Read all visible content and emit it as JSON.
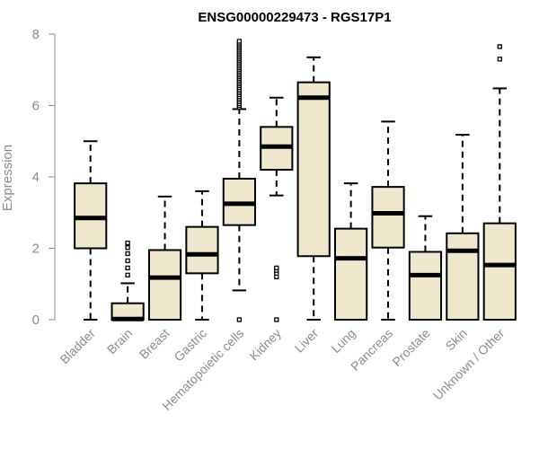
{
  "chart_data": {
    "type": "boxplot",
    "title": "ENSG00000229473 - RGS17P1",
    "xlabel": "",
    "ylabel": "Expression",
    "ylim": [
      0,
      8
    ],
    "yticks": [
      0,
      2,
      4,
      6,
      8
    ],
    "grid": false,
    "legend": "none",
    "colors": {
      "box_fill": "#efe8cf",
      "stroke": "#000000",
      "axis_text": "#8c8c8c"
    },
    "categories": [
      "Bladder",
      "Brain",
      "Breast",
      "Gastric",
      "Hematopoietic cells",
      "Kidney",
      "Liver",
      "Lung",
      "Pancreas",
      "Prostate",
      "Skin",
      "Unknown / Other"
    ],
    "boxes": [
      {
        "category": "Bladder",
        "whisker_low": 0.0,
        "q1": 2.0,
        "median": 2.85,
        "q3": 3.82,
        "whisker_high": 5.0,
        "outliers": []
      },
      {
        "category": "Brain",
        "whisker_low": 0.0,
        "q1": 0.0,
        "median": 0.02,
        "q3": 0.46,
        "whisker_high": 1.02,
        "outliers": [
          1.25,
          1.45,
          1.65,
          1.85,
          2.02,
          2.15
        ]
      },
      {
        "category": "Breast",
        "whisker_low": 0.0,
        "q1": 0.0,
        "median": 1.18,
        "q3": 1.95,
        "whisker_high": 3.45,
        "outliers": []
      },
      {
        "category": "Gastric",
        "whisker_low": 0.0,
        "q1": 1.3,
        "median": 1.83,
        "q3": 2.6,
        "whisker_high": 3.6,
        "outliers": []
      },
      {
        "category": "Hematopoietic cells",
        "whisker_low": 0.82,
        "q1": 2.65,
        "median": 3.25,
        "q3": 3.95,
        "whisker_high": 5.9,
        "outliers": [
          0.0,
          5.95,
          6.0,
          6.05,
          6.1,
          6.15,
          6.2,
          6.25,
          6.3,
          6.35,
          6.4,
          6.45,
          6.5,
          6.55,
          6.6,
          6.65,
          6.7,
          6.75,
          6.8,
          6.85,
          6.9,
          6.95,
          7.0,
          7.05,
          7.1,
          7.15,
          7.2,
          7.25,
          7.3,
          7.35,
          7.4,
          7.45,
          7.5,
          7.55,
          7.6,
          7.65,
          7.7,
          7.75,
          7.8
        ]
      },
      {
        "category": "Kidney",
        "whisker_low": 3.48,
        "q1": 4.2,
        "median": 4.85,
        "q3": 5.4,
        "whisker_high": 6.22,
        "outliers": [
          0.0,
          1.2,
          1.3,
          1.38,
          1.45
        ]
      },
      {
        "category": "Liver",
        "whisker_low": 0.0,
        "q1": 1.78,
        "median": 6.22,
        "q3": 6.65,
        "whisker_high": 7.35,
        "outliers": []
      },
      {
        "category": "Lung",
        "whisker_low": 0.0,
        "q1": 0.0,
        "median": 1.72,
        "q3": 2.55,
        "whisker_high": 3.82,
        "outliers": []
      },
      {
        "category": "Pancreas",
        "whisker_low": 0.0,
        "q1": 2.02,
        "median": 2.98,
        "q3": 3.72,
        "whisker_high": 5.55,
        "outliers": []
      },
      {
        "category": "Prostate",
        "whisker_low": 0.0,
        "q1": 0.0,
        "median": 1.25,
        "q3": 1.9,
        "whisker_high": 2.9,
        "outliers": []
      },
      {
        "category": "Skin",
        "whisker_low": 0.0,
        "q1": 0.0,
        "median": 1.93,
        "q3": 2.42,
        "whisker_high": 5.18,
        "outliers": []
      },
      {
        "category": "Unknown / Other",
        "whisker_low": 0.0,
        "q1": 0.0,
        "median": 1.53,
        "q3": 2.7,
        "whisker_high": 6.48,
        "outliers": [
          7.3,
          7.65
        ]
      }
    ]
  }
}
